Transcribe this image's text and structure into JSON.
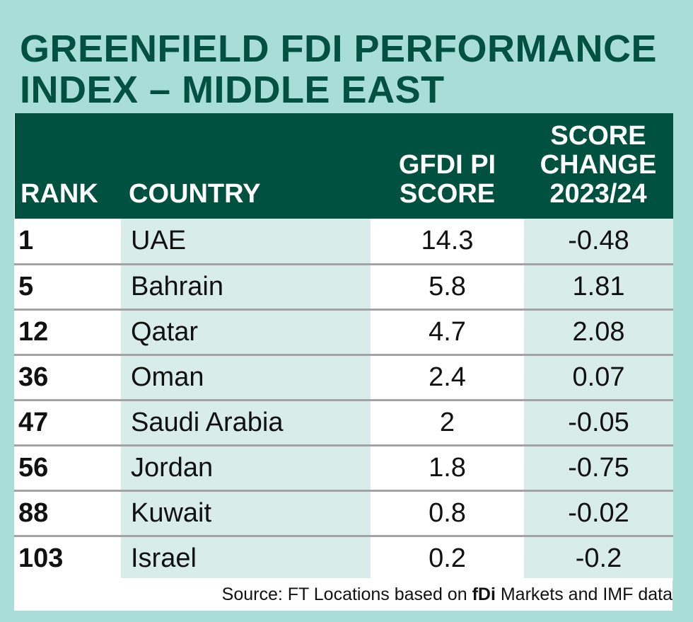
{
  "title": "GREENFIELD FDI PERFORMANCE INDEX – MIDDLE EAST",
  "headers": {
    "rank": "RANK",
    "country": "COUNTRY",
    "score": "GFDI PI SCORE",
    "change": "SCORE CHANGE 2023/24"
  },
  "rows": [
    {
      "rank": "1",
      "country": "UAE",
      "score": "14.3",
      "change": "-0.48"
    },
    {
      "rank": "5",
      "country": "Bahrain",
      "score": "5.8",
      "change": "1.81"
    },
    {
      "rank": "12",
      "country": "Qatar",
      "score": "4.7",
      "change": "2.08"
    },
    {
      "rank": "36",
      "country": "Oman",
      "score": "2.4",
      "change": "0.07"
    },
    {
      "rank": "47",
      "country": "Saudi Arabia",
      "score": "2",
      "change": "-0.05"
    },
    {
      "rank": "56",
      "country": "Jordan",
      "score": "1.8",
      "change": "-0.75"
    },
    {
      "rank": "88",
      "country": "Kuwait",
      "score": "0.8",
      "change": "-0.02"
    },
    {
      "rank": "103",
      "country": "Israel",
      "score": "0.2",
      "change": "-0.2"
    }
  ],
  "source": {
    "prefix": "Source: FT Locations based on ",
    "brand": "fDi",
    "suffix": " Markets and IMF data"
  },
  "colors": {
    "background": "#a9ddd8",
    "header": "#00513f",
    "stripe": "#d8edea"
  }
}
